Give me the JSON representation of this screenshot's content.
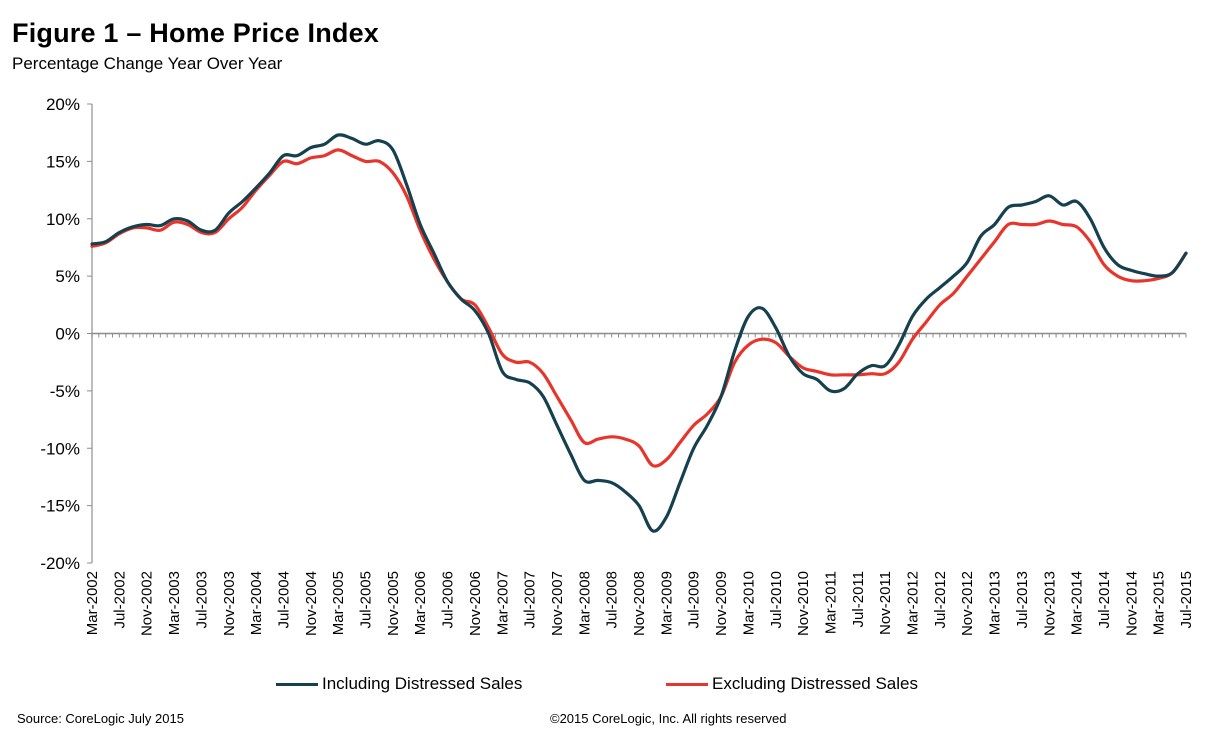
{
  "chart_data": {
    "type": "line",
    "title": "Figure 1 – Home Price Index",
    "subtitle": "Percentage Change Year Over Year",
    "xlabel": "",
    "ylabel": "",
    "ylim": [
      -20,
      20
    ],
    "yticks": [
      "20%",
      "15%",
      "10%",
      "5%",
      "0%",
      "-5%",
      "-10%",
      "-15%",
      "-20%"
    ],
    "ytick_values": [
      20,
      15,
      10,
      5,
      0,
      -5,
      -10,
      -15,
      -20
    ],
    "x_tick_labels": [
      "Mar-2002",
      "Jul-2002",
      "Nov-2002",
      "Mar-2003",
      "Jul-2003",
      "Nov-2003",
      "Mar-2004",
      "Jul-2004",
      "Nov-2004",
      "Mar-2005",
      "Jul-2005",
      "Nov-2005",
      "Mar-2006",
      "Jul-2006",
      "Nov-2006",
      "Mar-2007",
      "Jul-2007",
      "Nov-2007",
      "Mar-2008",
      "Jul-2008",
      "Nov-2008",
      "Mar-2009",
      "Jul-2009",
      "Nov-2009",
      "Mar-2010",
      "Jul-2010",
      "Nov-2010",
      "Mar-2011",
      "Jul-2011",
      "Nov-2011",
      "Mar-2012",
      "Jul-2012",
      "Nov-2012",
      "Mar-2013",
      "Jul-2013",
      "Nov-2013",
      "Mar-2014",
      "Jul-2014",
      "Nov-2014",
      "Mar-2015",
      "Jul-2015"
    ],
    "grid": false,
    "legend_position": "bottom",
    "colors": {
      "including": "#17404f",
      "excluding": "#e8342a"
    },
    "series": [
      {
        "name": "Including Distressed Sales",
        "key": "including",
        "points": [
          [
            "Mar-2002",
            7.8
          ],
          [
            "May-2002",
            8.0
          ],
          [
            "Jul-2002",
            8.8
          ],
          [
            "Sep-2002",
            9.3
          ],
          [
            "Nov-2002",
            9.5
          ],
          [
            "Jan-2003",
            9.4
          ],
          [
            "Mar-2003",
            10.0
          ],
          [
            "May-2003",
            9.8
          ],
          [
            "Jul-2003",
            9.0
          ],
          [
            "Sep-2003",
            9.0
          ],
          [
            "Nov-2003",
            10.5
          ],
          [
            "Jan-2004",
            11.5
          ],
          [
            "Mar-2004",
            12.7
          ],
          [
            "May-2004",
            14.0
          ],
          [
            "Jul-2004",
            15.5
          ],
          [
            "Sep-2004",
            15.5
          ],
          [
            "Nov-2004",
            16.2
          ],
          [
            "Jan-2005",
            16.5
          ],
          [
            "Mar-2005",
            17.3
          ],
          [
            "May-2005",
            17.0
          ],
          [
            "Jul-2005",
            16.5
          ],
          [
            "Sep-2005",
            16.8
          ],
          [
            "Nov-2005",
            16.0
          ],
          [
            "Jan-2006",
            13.0
          ],
          [
            "Mar-2006",
            9.5
          ],
          [
            "May-2006",
            7.0
          ],
          [
            "Jul-2006",
            4.5
          ],
          [
            "Sep-2006",
            3.0
          ],
          [
            "Nov-2006",
            2.0
          ],
          [
            "Jan-2007",
            0.0
          ],
          [
            "Mar-2007",
            -3.3
          ],
          [
            "May-2007",
            -4.0
          ],
          [
            "Jul-2007",
            -4.3
          ],
          [
            "Sep-2007",
            -5.5
          ],
          [
            "Nov-2007",
            -8.0
          ],
          [
            "Jan-2008",
            -10.5
          ],
          [
            "Mar-2008",
            -12.8
          ],
          [
            "May-2008",
            -12.8
          ],
          [
            "Jul-2008",
            -13.0
          ],
          [
            "Sep-2008",
            -13.8
          ],
          [
            "Nov-2008",
            -15.0
          ],
          [
            "Jan-2009",
            -17.2
          ],
          [
            "Mar-2009",
            -16.0
          ],
          [
            "May-2009",
            -13.0
          ],
          [
            "Jul-2009",
            -10.0
          ],
          [
            "Sep-2009",
            -8.0
          ],
          [
            "Nov-2009",
            -5.5
          ],
          [
            "Jan-2010",
            -1.5
          ],
          [
            "Mar-2010",
            1.5
          ],
          [
            "May-2010",
            2.2
          ],
          [
            "Jul-2010",
            0.5
          ],
          [
            "Sep-2010",
            -2.0
          ],
          [
            "Nov-2010",
            -3.5
          ],
          [
            "Jan-2011",
            -4.0
          ],
          [
            "Mar-2011",
            -5.0
          ],
          [
            "May-2011",
            -4.8
          ],
          [
            "Jul-2011",
            -3.5
          ],
          [
            "Sep-2011",
            -2.8
          ],
          [
            "Nov-2011",
            -2.8
          ],
          [
            "Jan-2012",
            -1.0
          ],
          [
            "Mar-2012",
            1.5
          ],
          [
            "May-2012",
            3.0
          ],
          [
            "Jul-2012",
            4.0
          ],
          [
            "Sep-2012",
            5.0
          ],
          [
            "Nov-2012",
            6.2
          ],
          [
            "Jan-2013",
            8.5
          ],
          [
            "Mar-2013",
            9.5
          ],
          [
            "May-2013",
            11.0
          ],
          [
            "Jul-2013",
            11.2
          ],
          [
            "Sep-2013",
            11.5
          ],
          [
            "Nov-2013",
            12.0
          ],
          [
            "Jan-2014",
            11.2
          ],
          [
            "Mar-2014",
            11.5
          ],
          [
            "May-2014",
            10.0
          ],
          [
            "Jul-2014",
            7.5
          ],
          [
            "Sep-2014",
            6.0
          ],
          [
            "Nov-2014",
            5.5
          ],
          [
            "Jan-2015",
            5.2
          ],
          [
            "Mar-2015",
            5.0
          ],
          [
            "May-2015",
            5.3
          ],
          [
            "Jul-2015",
            7.0
          ]
        ]
      },
      {
        "name": "Excluding Distressed Sales",
        "key": "excluding",
        "points": [
          [
            "Mar-2002",
            7.6
          ],
          [
            "May-2002",
            7.9
          ],
          [
            "Jul-2002",
            8.7
          ],
          [
            "Sep-2002",
            9.2
          ],
          [
            "Nov-2002",
            9.2
          ],
          [
            "Jan-2003",
            9.0
          ],
          [
            "Mar-2003",
            9.7
          ],
          [
            "May-2003",
            9.5
          ],
          [
            "Jul-2003",
            8.8
          ],
          [
            "Sep-2003",
            8.8
          ],
          [
            "Nov-2003",
            10.0
          ],
          [
            "Jan-2004",
            11.0
          ],
          [
            "Mar-2004",
            12.5
          ],
          [
            "May-2004",
            13.8
          ],
          [
            "Jul-2004",
            15.0
          ],
          [
            "Sep-2004",
            14.8
          ],
          [
            "Nov-2004",
            15.3
          ],
          [
            "Jan-2005",
            15.5
          ],
          [
            "Mar-2005",
            16.0
          ],
          [
            "May-2005",
            15.5
          ],
          [
            "Jul-2005",
            15.0
          ],
          [
            "Sep-2005",
            15.0
          ],
          [
            "Nov-2005",
            14.0
          ],
          [
            "Jan-2006",
            12.0
          ],
          [
            "Mar-2006",
            9.0
          ],
          [
            "May-2006",
            6.5
          ],
          [
            "Jul-2006",
            4.5
          ],
          [
            "Sep-2006",
            3.0
          ],
          [
            "Nov-2006",
            2.5
          ],
          [
            "Jan-2007",
            0.5
          ],
          [
            "Mar-2007",
            -1.8
          ],
          [
            "May-2007",
            -2.5
          ],
          [
            "Jul-2007",
            -2.5
          ],
          [
            "Sep-2007",
            -3.5
          ],
          [
            "Nov-2007",
            -5.5
          ],
          [
            "Jan-2008",
            -7.5
          ],
          [
            "Mar-2008",
            -9.5
          ],
          [
            "May-2008",
            -9.2
          ],
          [
            "Jul-2008",
            -9.0
          ],
          [
            "Sep-2008",
            -9.2
          ],
          [
            "Nov-2008",
            -9.8
          ],
          [
            "Jan-2009",
            -11.5
          ],
          [
            "Mar-2009",
            -11.0
          ],
          [
            "May-2009",
            -9.5
          ],
          [
            "Jul-2009",
            -8.0
          ],
          [
            "Sep-2009",
            -7.0
          ],
          [
            "Nov-2009",
            -5.5
          ],
          [
            "Jan-2010",
            -2.5
          ],
          [
            "Mar-2010",
            -1.0
          ],
          [
            "May-2010",
            -0.5
          ],
          [
            "Jul-2010",
            -0.8
          ],
          [
            "Sep-2010",
            -2.0
          ],
          [
            "Nov-2010",
            -3.0
          ],
          [
            "Jan-2011",
            -3.3
          ],
          [
            "Mar-2011",
            -3.6
          ],
          [
            "May-2011",
            -3.6
          ],
          [
            "Jul-2011",
            -3.6
          ],
          [
            "Sep-2011",
            -3.5
          ],
          [
            "Nov-2011",
            -3.5
          ],
          [
            "Jan-2012",
            -2.5
          ],
          [
            "Mar-2012",
            -0.5
          ],
          [
            "May-2012",
            1.0
          ],
          [
            "Jul-2012",
            2.5
          ],
          [
            "Sep-2012",
            3.5
          ],
          [
            "Nov-2012",
            5.0
          ],
          [
            "Jan-2013",
            6.5
          ],
          [
            "Mar-2013",
            8.0
          ],
          [
            "May-2013",
            9.5
          ],
          [
            "Jul-2013",
            9.5
          ],
          [
            "Sep-2013",
            9.5
          ],
          [
            "Nov-2013",
            9.8
          ],
          [
            "Jan-2014",
            9.5
          ],
          [
            "Mar-2014",
            9.3
          ],
          [
            "May-2014",
            8.0
          ],
          [
            "Jul-2014",
            6.0
          ],
          [
            "Sep-2014",
            5.0
          ],
          [
            "Nov-2014",
            4.6
          ],
          [
            "Jan-2015",
            4.6
          ],
          [
            "Mar-2015",
            4.8
          ],
          [
            "May-2015",
            5.3
          ],
          [
            "Jul-2015",
            7.0
          ]
        ]
      }
    ]
  },
  "footer": {
    "source": "Source: CoreLogic July 2015",
    "copyright": "©2015 CoreLogic, Inc. All rights reserved"
  }
}
